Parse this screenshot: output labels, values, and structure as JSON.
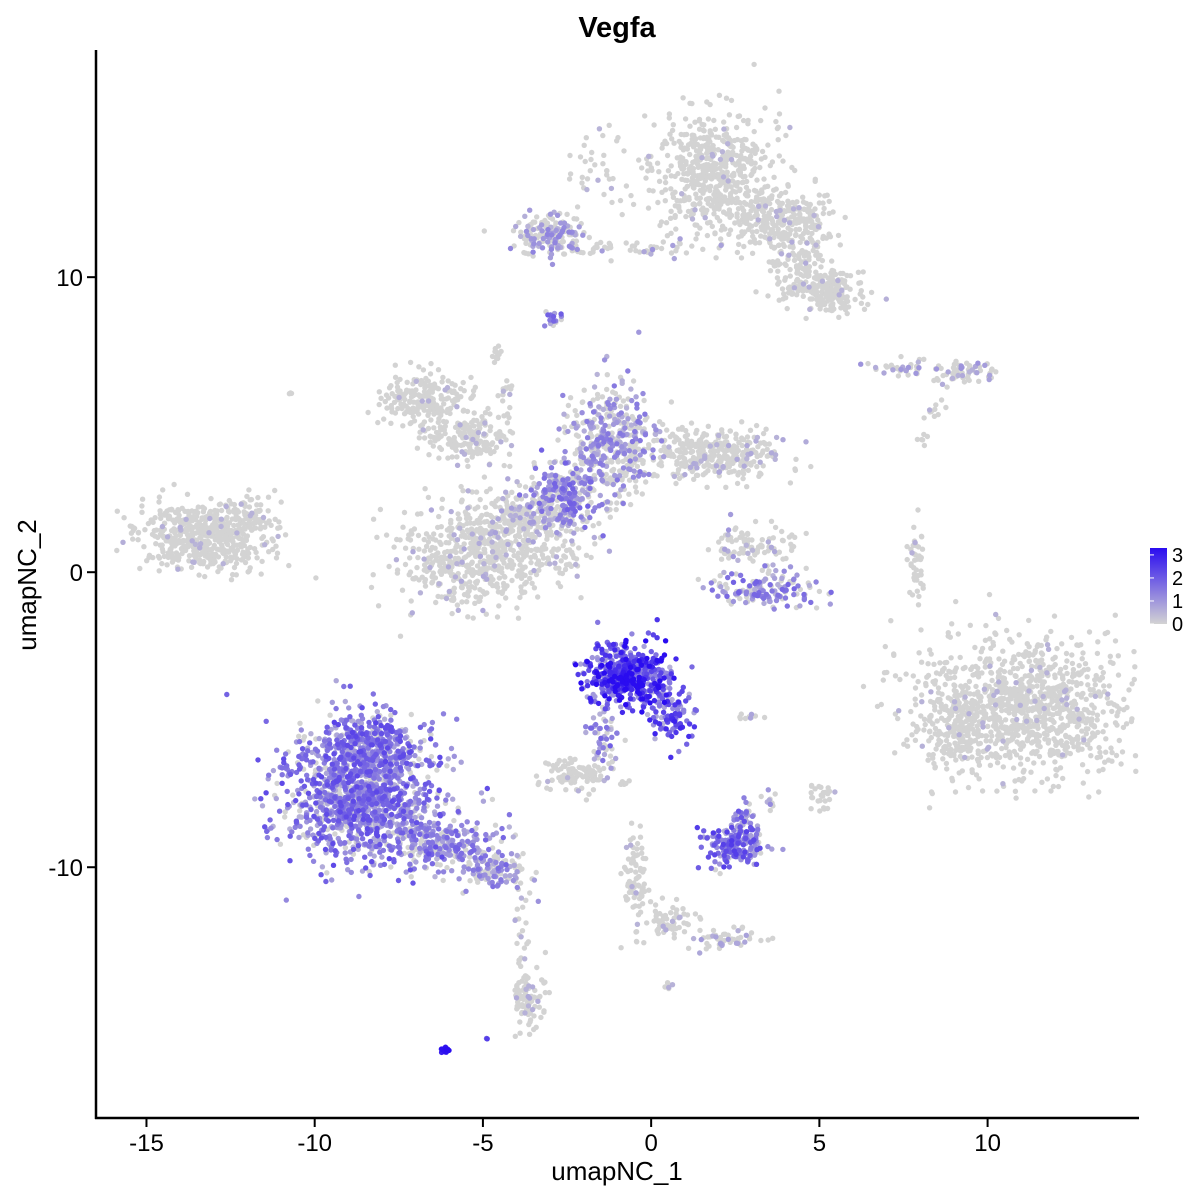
{
  "chart_data": {
    "type": "scatter",
    "title": "Vegfa",
    "xlabel": "umapNC_1",
    "ylabel": "umapNC_2",
    "xlim": [
      -16.5,
      14.5
    ],
    "ylim": [
      -18.5,
      17.7
    ],
    "x_ticks": [
      -15,
      -10,
      -5,
      0,
      5,
      10
    ],
    "x_tick_labels": [
      "-15",
      "-10",
      "-5",
      "0",
      "5",
      "10"
    ],
    "y_ticks": [
      -10,
      0,
      10
    ],
    "y_tick_labels": [
      "-10",
      "0",
      "10"
    ],
    "grid": false,
    "legend_position": "right",
    "color_scale": {
      "low_color": "#d3d3d3",
      "high_color": "#2a0cf0",
      "min": 0,
      "max": 3.3,
      "ticks": [
        0,
        1,
        2,
        3
      ],
      "tick_labels": [
        "0",
        "1",
        "2",
        "3"
      ]
    },
    "clusters": [
      {
        "center": [
          -13.3,
          1.2
        ],
        "spread": [
          1.0,
          0.55
        ],
        "n": 520,
        "expr": 0.06
      },
      {
        "center": [
          -11.9,
          2.0
        ],
        "spread": [
          0.45,
          0.35
        ],
        "n": 70,
        "expr": 0.05
      },
      {
        "center": [
          -6.8,
          5.8
        ],
        "spread": [
          0.7,
          0.45
        ],
        "n": 220,
        "expr": 0.05
      },
      {
        "center": [
          -5.4,
          4.5
        ],
        "spread": [
          0.6,
          0.4
        ],
        "n": 160,
        "expr": 0.1
      },
      {
        "center": [
          -5.0,
          0.6
        ],
        "spread": [
          1.2,
          0.9
        ],
        "n": 640,
        "expr": 0.12
      },
      {
        "center": [
          -3.8,
          1.8
        ],
        "spread": [
          0.5,
          0.5
        ],
        "n": 150,
        "expr": 0.25
      },
      {
        "center": [
          -2.6,
          2.6
        ],
        "spread": [
          0.5,
          0.6
        ],
        "n": 260,
        "expr": 0.75
      },
      {
        "center": [
          -1.2,
          4.4
        ],
        "spread": [
          0.6,
          1.0
        ],
        "n": 420,
        "expr": 0.55
      },
      {
        "center": [
          1.8,
          4.0
        ],
        "spread": [
          1.1,
          0.45
        ],
        "n": 360,
        "expr": 0.12
      },
      {
        "center": [
          -1.4,
          14.0
        ],
        "spread": [
          0.5,
          0.8
        ],
        "n": 40,
        "expr": 0.05
      },
      {
        "center": [
          1.8,
          13.6
        ],
        "spread": [
          0.85,
          1.0
        ],
        "n": 520,
        "expr": 0.05
      },
      {
        "center": [
          3.7,
          12.0
        ],
        "spread": [
          0.9,
          0.5
        ],
        "n": 300,
        "expr": 0.05
      },
      {
        "center": [
          5.2,
          9.6
        ],
        "spread": [
          0.6,
          0.4
        ],
        "n": 200,
        "expr": 0.06
      },
      {
        "center": [
          -3.0,
          11.4
        ],
        "spread": [
          0.55,
          0.35
        ],
        "n": 170,
        "expr": 0.45
      },
      {
        "center": [
          -0.8,
          11.0
        ],
        "spread": [
          1.2,
          0.15
        ],
        "n": 50,
        "expr": 0.3
      },
      {
        "center": [
          4.3,
          10.6
        ],
        "spread": [
          0.45,
          0.7
        ],
        "n": 110,
        "expr": 0.1
      },
      {
        "center": [
          -2.9,
          8.6
        ],
        "spread": [
          0.12,
          0.2
        ],
        "n": 16,
        "expr": 0.8
      },
      {
        "center": [
          -4.6,
          7.3
        ],
        "spread": [
          0.08,
          0.2
        ],
        "n": 12,
        "expr": 0.05
      },
      {
        "center": [
          -4.3,
          5.8
        ],
        "spread": [
          0.1,
          0.6
        ],
        "n": 18,
        "expr": 0.05
      },
      {
        "center": [
          -2.4,
          0.5
        ],
        "spread": [
          0.5,
          0.35
        ],
        "n": 30,
        "expr": 0.08
      },
      {
        "center": [
          -10.7,
          6.1
        ],
        "spread": [
          0.05,
          0.05
        ],
        "n": 3,
        "expr": 0.0
      },
      {
        "center": [
          3.2,
          0.8
        ],
        "spread": [
          0.6,
          0.4
        ],
        "n": 70,
        "expr": 0.15
      },
      {
        "center": [
          3.3,
          -0.6
        ],
        "spread": [
          0.9,
          0.3
        ],
        "n": 140,
        "expr": 0.75
      },
      {
        "center": [
          2.5,
          1.0
        ],
        "spread": [
          0.3,
          0.3
        ],
        "n": 30,
        "expr": 0.3
      },
      {
        "center": [
          7.5,
          6.9
        ],
        "spread": [
          0.5,
          0.15
        ],
        "n": 40,
        "expr": 0.35
      },
      {
        "center": [
          9.3,
          6.8
        ],
        "spread": [
          0.5,
          0.2
        ],
        "n": 60,
        "expr": 0.3
      },
      {
        "center": [
          8.5,
          5.5
        ],
        "spread": [
          0.2,
          0.2
        ],
        "n": 10,
        "expr": 0.05
      },
      {
        "center": [
          8.0,
          4.6
        ],
        "spread": [
          0.15,
          0.15
        ],
        "n": 6,
        "expr": 0.05
      },
      {
        "center": [
          7.9,
          0.2
        ],
        "spread": [
          0.12,
          0.8
        ],
        "n": 40,
        "expr": 0.08
      },
      {
        "center": [
          11.0,
          -4.6
        ],
        "spread": [
          1.6,
          1.2
        ],
        "n": 1100,
        "expr": 0.05
      },
      {
        "center": [
          9.0,
          -5.4
        ],
        "spread": [
          0.4,
          0.8
        ],
        "n": 140,
        "expr": 0.05
      },
      {
        "center": [
          -0.8,
          -3.5
        ],
        "spread": [
          0.6,
          0.5
        ],
        "n": 520,
        "expr": 1.75
      },
      {
        "center": [
          0.6,
          -4.8
        ],
        "spread": [
          0.35,
          0.45
        ],
        "n": 100,
        "expr": 1.3
      },
      {
        "center": [
          -1.4,
          -5.6
        ],
        "spread": [
          0.25,
          0.6
        ],
        "n": 60,
        "expr": 0.8
      },
      {
        "center": [
          -2.3,
          -6.9
        ],
        "spread": [
          0.45,
          0.3
        ],
        "n": 110,
        "expr": 0.05
      },
      {
        "center": [
          -8.7,
          -7.5
        ],
        "spread": [
          1.1,
          1.1
        ],
        "n": 1300,
        "expr": 0.95
      },
      {
        "center": [
          -8.2,
          -5.8
        ],
        "spread": [
          0.7,
          0.5
        ],
        "n": 260,
        "expr": 1.0
      },
      {
        "center": [
          -6.2,
          -9.3
        ],
        "spread": [
          0.9,
          0.45
        ],
        "n": 280,
        "expr": 0.75
      },
      {
        "center": [
          -4.6,
          -10.2
        ],
        "spread": [
          0.5,
          0.3
        ],
        "n": 110,
        "expr": 0.6
      },
      {
        "center": [
          -3.7,
          -14.5
        ],
        "spread": [
          0.25,
          0.5
        ],
        "n": 90,
        "expr": 0.15
      },
      {
        "center": [
          -3.9,
          -12.5
        ],
        "spread": [
          0.1,
          0.9
        ],
        "n": 22,
        "expr": 0.1
      },
      {
        "center": [
          -6.1,
          -16.2
        ],
        "spread": [
          0.06,
          0.04
        ],
        "n": 20,
        "expr": 3.3
      },
      {
        "center": [
          -4.9,
          -15.8
        ],
        "spread": [
          0.02,
          0.02
        ],
        "n": 2,
        "expr": 1.3
      },
      {
        "center": [
          2.5,
          -9.3
        ],
        "spread": [
          0.45,
          0.3
        ],
        "n": 180,
        "expr": 1.1
      },
      {
        "center": [
          2.7,
          -8.4
        ],
        "spread": [
          0.2,
          0.25
        ],
        "n": 40,
        "expr": 0.9
      },
      {
        "center": [
          -0.4,
          -10.5
        ],
        "spread": [
          0.2,
          0.8
        ],
        "n": 80,
        "expr": 0.08
      },
      {
        "center": [
          0.5,
          -11.8
        ],
        "spread": [
          0.35,
          0.3
        ],
        "n": 60,
        "expr": 0.1
      },
      {
        "center": [
          2.3,
          -12.4
        ],
        "spread": [
          0.5,
          0.15
        ],
        "n": 50,
        "expr": 0.25
      },
      {
        "center": [
          5.0,
          -7.6
        ],
        "spread": [
          0.2,
          0.3
        ],
        "n": 25,
        "expr": 0.05
      },
      {
        "center": [
          3.4,
          -7.8
        ],
        "spread": [
          0.1,
          0.2
        ],
        "n": 10,
        "expr": 0.4
      },
      {
        "center": [
          2.9,
          -4.9
        ],
        "spread": [
          0.2,
          0.05
        ],
        "n": 10,
        "expr": 0.2
      },
      {
        "center": [
          -0.9,
          -7.2
        ],
        "spread": [
          0.1,
          0.1
        ],
        "n": 6,
        "expr": 0.2
      },
      {
        "center": [
          0.5,
          -14.0
        ],
        "spread": [
          0.08,
          0.05
        ],
        "n": 6,
        "expr": 0.1
      }
    ]
  }
}
